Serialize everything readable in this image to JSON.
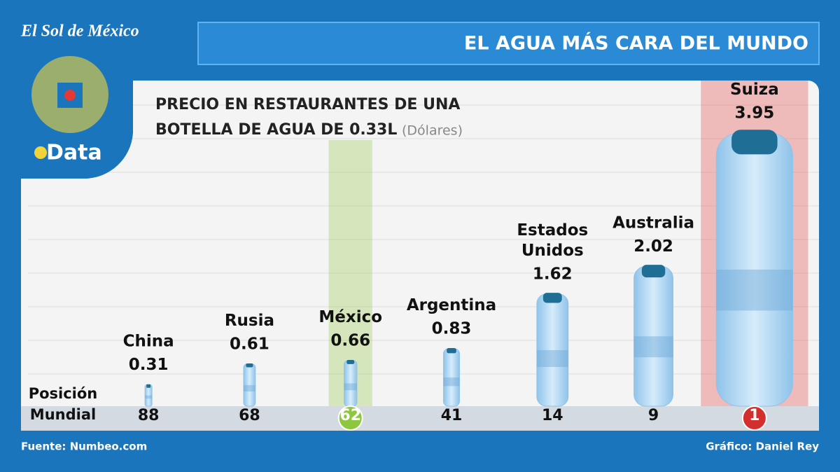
{
  "brand": "El Sol de México",
  "section": "Data",
  "chart_data": {
    "type": "bar",
    "title": "EL AGUA MÁS CARA DEL MUNDO",
    "subtitle": "PRECIO EN RESTAURANTES DE UNA BOTELLA DE AGUA DE 0.33L",
    "unit": "(Dólares)",
    "categories": [
      "China",
      "Rusia",
      "México",
      "Argentina",
      "Estados Unidos",
      "Australia",
      "Suiza"
    ],
    "values": [
      0.31,
      0.61,
      0.66,
      0.83,
      1.62,
      2.02,
      3.95
    ],
    "position_label": "Posición Mundial",
    "positions": [
      88,
      68,
      62,
      41,
      14,
      9,
      1
    ],
    "highlight_colors": [
      null,
      null,
      "#8dc63f",
      null,
      null,
      null,
      "#e53935"
    ],
    "color": "#a9d3f0",
    "ylim": [
      0,
      4
    ],
    "source": "Fuente: Numbeo.com",
    "credit": "Gráfico: Daniel Rey"
  }
}
